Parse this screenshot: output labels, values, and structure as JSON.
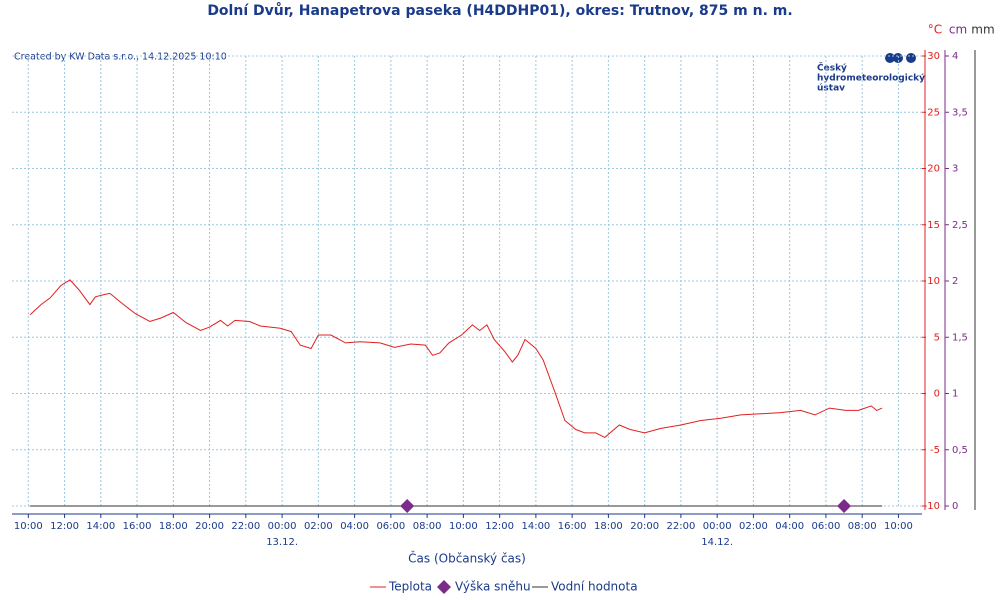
{
  "chart_data": {
    "type": "line",
    "title": "Dolní Dvůr, Hanapetrova paseka (H4DDHP01), okres: Trutnov, 875 m n. m.",
    "note": "Created by KW Data s.r.o., 14.12.2025 10:10",
    "logo": [
      "Český",
      "hydrometeorologický",
      "ústav"
    ],
    "xlabel": "Čas (Občanský čas)",
    "y_unit": "°C",
    "y2_unit": "cm",
    "y3_unit": "mm",
    "grid": true,
    "xlim": [
      9.1,
      59.3
    ],
    "xticks": [
      {
        "value": 10,
        "label": "10:00"
      },
      {
        "value": 12,
        "label": "12:00"
      },
      {
        "value": 14,
        "label": "14:00"
      },
      {
        "value": 16,
        "label": "16:00"
      },
      {
        "value": 18,
        "label": "18:00"
      },
      {
        "value": 20,
        "label": "20:00"
      },
      {
        "value": 22,
        "label": "22:00"
      },
      {
        "value": 24,
        "label": "00:00"
      },
      {
        "value": 26,
        "label": "02:00"
      },
      {
        "value": 28,
        "label": "04:00"
      },
      {
        "value": 30,
        "label": "06:00"
      },
      {
        "value": 32,
        "label": "08:00"
      },
      {
        "value": 34,
        "label": "10:00"
      },
      {
        "value": 36,
        "label": "12:00"
      },
      {
        "value": 38,
        "label": "14:00"
      },
      {
        "value": 40,
        "label": "16:00"
      },
      {
        "value": 42,
        "label": "18:00"
      },
      {
        "value": 44,
        "label": "20:00"
      },
      {
        "value": 46,
        "label": "22:00"
      },
      {
        "value": 48,
        "label": "00:00"
      },
      {
        "value": 50,
        "label": "02:00"
      },
      {
        "value": 52,
        "label": "04:00"
      },
      {
        "value": 54,
        "label": "06:00"
      },
      {
        "value": 56,
        "label": "08:00"
      },
      {
        "value": 58,
        "label": "10:00"
      }
    ],
    "x_date_labels": [
      {
        "value": 24,
        "label": "13.12."
      },
      {
        "value": 48,
        "label": "14.12."
      }
    ],
    "ylim": [
      -10,
      30
    ],
    "yticks": [
      -10,
      -5,
      0,
      5,
      10,
      15,
      20,
      25,
      30
    ],
    "y2lim": [
      0,
      4
    ],
    "y2ticks": [
      0,
      {
        "value": 0.5,
        "label": "0,5"
      },
      1,
      {
        "value": 1.5,
        "label": "1,5"
      },
      2,
      {
        "value": 2.5,
        "label": "2,5"
      },
      3,
      {
        "value": 3.5,
        "label": "3,5"
      },
      4
    ],
    "series": [
      {
        "name": "Teplota",
        "color": "#e02020",
        "x": [
          10.1,
          10.7,
          11.2,
          11.8,
          12.3,
          12.8,
          13.4,
          13.7,
          14.2,
          14.5,
          15.1,
          15.9,
          16.7,
          17.3,
          18,
          18.7,
          19.5,
          20,
          20.6,
          21,
          21.4,
          22.2,
          22.8,
          23.9,
          24.5,
          25,
          25.6,
          26,
          26.7,
          27.5,
          28.3,
          29.4,
          30.2,
          31.1,
          31.9,
          32.3,
          32.7,
          33.2,
          33.9,
          34.5,
          34.9,
          35.3,
          35.7,
          36.3,
          36.7,
          37,
          37.4,
          38,
          38.4,
          39.1,
          39.6,
          40.2,
          40.7,
          41.3,
          41.8,
          42.6,
          43.2,
          44,
          44.9,
          46,
          47.1,
          48.2,
          49.3,
          50.4,
          51.5,
          52.6,
          53.4,
          54.2,
          55.1,
          55.8,
          56.5,
          56.8,
          57.1
        ],
        "values": [
          7.0,
          7.9,
          8.5,
          9.6,
          10.1,
          9.2,
          7.9,
          8.6,
          8.8,
          8.9,
          8.1,
          7.1,
          6.4,
          6.7,
          7.2,
          6.3,
          5.6,
          5.9,
          6.5,
          6.0,
          6.5,
          6.4,
          6.0,
          5.8,
          5.5,
          4.3,
          4.0,
          5.2,
          5.2,
          4.5,
          4.6,
          4.5,
          4.1,
          4.4,
          4.3,
          3.4,
          3.6,
          4.5,
          5.2,
          6.1,
          5.6,
          6.1,
          4.8,
          3.7,
          2.8,
          3.4,
          4.8,
          4.0,
          3.0,
          -0.1,
          -2.4,
          -3.2,
          -3.5,
          -3.5,
          -3.9,
          -2.8,
          -3.2,
          -3.5,
          -3.1,
          -2.8,
          -2.4,
          -2.2,
          -1.9,
          -1.8,
          -1.7,
          -1.5,
          -1.9,
          -1.3,
          -1.5,
          -1.5,
          -1.1,
          -1.5,
          -1.3
        ]
      },
      {
        "name": "Výška sněhu",
        "color": "#7b2b8a",
        "axis": "y2",
        "marker": "diamond",
        "x": [
          30.9,
          55.0
        ],
        "values": [
          0,
          0
        ]
      },
      {
        "name": "Vodní hodnota",
        "color": "#333333",
        "axis": "y2",
        "x": [
          10.1,
          57.1
        ],
        "values": [
          0,
          0
        ]
      }
    ]
  }
}
